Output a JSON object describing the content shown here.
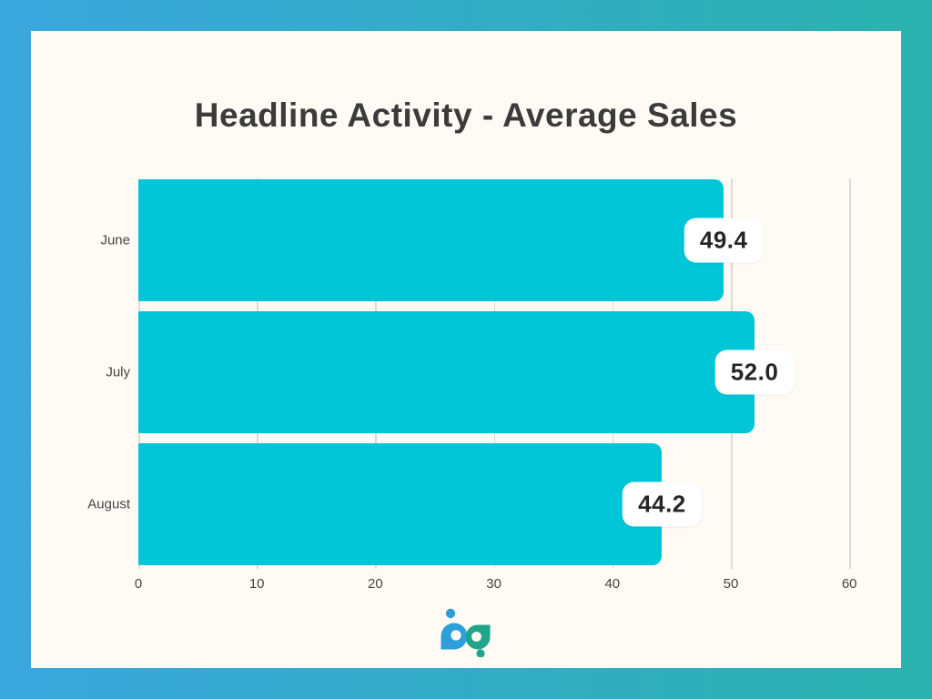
{
  "chart_data": {
    "type": "bar",
    "orientation": "horizontal",
    "title": "Headline Activity - Average Sales",
    "categories": [
      "June",
      "July",
      "August"
    ],
    "values": [
      49.4,
      52.0,
      44.2
    ],
    "value_labels": [
      "49.4",
      "52.0",
      "44.2"
    ],
    "x_ticks": [
      0,
      10,
      20,
      30,
      40,
      50,
      60
    ],
    "xlim": [
      0,
      60.6
    ],
    "grid": true,
    "legend": "none"
  },
  "colors": {
    "bar": "#00C6D8",
    "card_bg": "#FFFBF4",
    "gradient_left": "#3AA7DE",
    "gradient_right": "#2BB2AE",
    "grid": "#DEDAD1",
    "title_text": "#3B3B3B",
    "label_text": "#454545",
    "badge_bg": "#FFFFFF",
    "badge_text": "#262626",
    "logo_blue": "#2E9FD9",
    "logo_teal": "#20A48C"
  },
  "logo": {
    "letters": "bp"
  }
}
